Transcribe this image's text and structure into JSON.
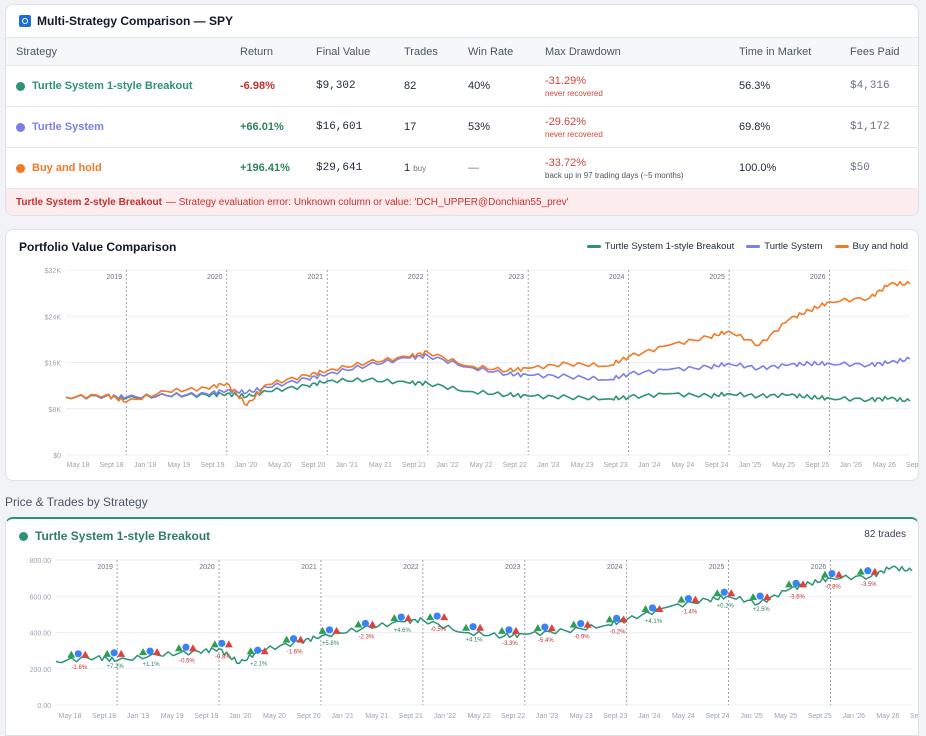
{
  "comparison": {
    "title": "Multi-Strategy Comparison — SPY",
    "headers": [
      "Strategy",
      "Return",
      "Final Value",
      "Trades",
      "Win Rate",
      "Max Drawdown",
      "Time in Market",
      "Fees Paid"
    ],
    "rows": [
      {
        "name": "Turtle System 1-style Breakout",
        "color": "#2e9277",
        "ret": "-6.98%",
        "ret_sign": "neg",
        "final": "$9,302",
        "trades": "82",
        "trades_sub": "",
        "win": "40%",
        "dd": "-31.29%",
        "dd_note": "never recovered",
        "dd_note_style": "red",
        "time": "56.3%",
        "fees": "$4,316"
      },
      {
        "name": "Turtle System",
        "color": "#7b7fe6",
        "ret": "+66.01%",
        "ret_sign": "pos",
        "final": "$16,601",
        "trades": "17",
        "trades_sub": "",
        "win": "53%",
        "dd": "-29.62%",
        "dd_note": "never recovered",
        "dd_note_style": "red",
        "time": "69.8%",
        "fees": "$1,172"
      },
      {
        "name": "Buy and hold",
        "color": "#f07a26",
        "ret": "+196.41%",
        "ret_sign": "pos",
        "final": "$29,641",
        "trades": "1",
        "trades_sub": "buy",
        "win": "—",
        "dd": "-33.72%",
        "dd_note": "back up in 97 trading days (~5 months)",
        "dd_note_style": "grey",
        "time": "100.0%",
        "fees": "$50"
      }
    ],
    "error_name": "Turtle System 2-style Breakout",
    "error_text": "— Strategy evaluation error: Unknown column or value: 'DCH_UPPER@Donchian55_prev'"
  },
  "portfolio": {
    "title": "Portfolio Value Comparison",
    "legend": [
      {
        "label": "Turtle System 1-style Breakout",
        "color": "#2e9277"
      },
      {
        "label": "Turtle System",
        "color": "#7b7fe6"
      },
      {
        "label": "Buy and hold",
        "color": "#f07a26"
      }
    ]
  },
  "section_title": "Price & Trades by Strategy",
  "trades_card": {
    "title": "Turtle System 1-style Breakout",
    "count": "82 trades",
    "color": "#2e9277"
  },
  "chart_data": [
    {
      "type": "line",
      "title": "Portfolio Value Comparison",
      "y_ticks": [
        "$0",
        "$8K",
        "$16K",
        "$24K",
        "$32K"
      ],
      "ylim": [
        0,
        32000
      ],
      "year_markers": [
        "2019",
        "2020",
        "2021",
        "2022",
        "2023",
        "2024",
        "2025",
        "2026"
      ],
      "x_ticks": [
        "May 18",
        "Sept 18",
        "Jan '19",
        "May 19",
        "Sept 19",
        "Jan '20",
        "May 20",
        "Sept 20",
        "Jan '21",
        "May 21",
        "Sept 21",
        "Jan '22",
        "May 22",
        "Sept 22",
        "Jan '23",
        "May 23",
        "Sept 23",
        "Jan '24",
        "May 24",
        "Sept 24",
        "Jan '25",
        "May 25",
        "Sept 25",
        "Jan '26",
        "May 26",
        "Sept 26"
      ],
      "x": [
        2018.4,
        2018.8,
        2019.0,
        2019.4,
        2019.8,
        2020.0,
        2020.2,
        2020.4,
        2020.8,
        2021.0,
        2021.4,
        2021.8,
        2022.0,
        2022.4,
        2022.8,
        2023.0,
        2023.4,
        2023.8,
        2024.0,
        2024.4,
        2024.8,
        2025.0,
        2025.3,
        2025.6,
        2025.8,
        2026.0,
        2026.4,
        2026.6,
        2026.8
      ],
      "series": [
        {
          "name": "Turtle System 1-style Breakout",
          "color": "#2e9277",
          "values": [
            10000,
            10200,
            9800,
            10300,
            10400,
            10600,
            10100,
            11000,
            12000,
            12800,
            13000,
            12500,
            12400,
            11000,
            10400,
            10200,
            10000,
            9700,
            10000,
            10600,
            10200,
            10600,
            10200,
            10400,
            10000,
            9800,
            9600,
            9800,
            9300
          ]
        },
        {
          "name": "Turtle System",
          "color": "#7b7fe6",
          "values": [
            10000,
            10200,
            10000,
            10300,
            10600,
            11200,
            10800,
            11700,
            13200,
            14000,
            15500,
            16800,
            17200,
            15200,
            14000,
            13800,
            13600,
            13000,
            14000,
            14800,
            15200,
            15800,
            15000,
            15600,
            15800,
            15800,
            15600,
            16000,
            16600
          ]
        },
        {
          "name": "Buy and hold",
          "color": "#f07a26",
          "values": [
            10000,
            10400,
            9200,
            11000,
            11600,
            12400,
            8600,
            12200,
            13800,
            14600,
            16000,
            17000,
            17800,
            15400,
            14600,
            15000,
            15800,
            15400,
            17000,
            19000,
            20400,
            21400,
            19000,
            23500,
            25000,
            26500,
            27200,
            29600,
            29600
          ]
        }
      ]
    },
    {
      "type": "line",
      "title": "Turtle System 1-style Breakout",
      "y_ticks": [
        "0.00",
        "200.00",
        "400.00",
        "600.00",
        "800.00"
      ],
      "ylim": [
        0,
        800
      ],
      "year_markers": [
        "2019",
        "2020",
        "2021",
        "2022",
        "2023",
        "2024",
        "2025",
        "2026"
      ],
      "x": [
        2018.4,
        2018.8,
        2019.0,
        2019.4,
        2019.8,
        2020.0,
        2020.2,
        2020.4,
        2020.8,
        2021.0,
        2021.4,
        2021.8,
        2022.0,
        2022.4,
        2022.8,
        2023.0,
        2023.4,
        2023.8,
        2024.0,
        2024.4,
        2024.8,
        2025.0,
        2025.3,
        2025.6,
        2025.8,
        2026.0,
        2026.4,
        2026.6,
        2026.8
      ],
      "series": [
        {
          "name": "",
          "color": "#2e9277",
          "values": [
            240,
            265,
            245,
            275,
            295,
            310,
            230,
            300,
            350,
            380,
            420,
            460,
            470,
            400,
            380,
            390,
            410,
            440,
            470,
            540,
            580,
            600,
            560,
            640,
            670,
            700,
            710,
            760,
            740
          ]
        }
      ],
      "trade_labels": [
        "-1.6%",
        "+7.2%",
        "+1.1%",
        "-0.5%",
        "-0.8%",
        "+2.1%",
        "-1.6%",
        "+5.8%",
        "-2.3%",
        "+4.6%",
        "-0.5%",
        "+4.1%",
        "-3.3%",
        "-5.4%",
        "-0.9%",
        "-0.2%",
        "+4.1%",
        "-1.4%",
        "+0.2%",
        "+2.5%",
        "-3.6%",
        "-0.8%",
        "-3.5%"
      ]
    }
  ]
}
